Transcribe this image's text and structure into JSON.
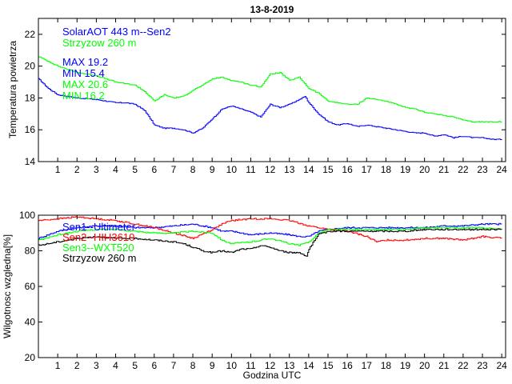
{
  "figure_title": "13-8-2019",
  "colors": {
    "blue": "#0000ff",
    "green": "#00ff00",
    "red": "#ff0000",
    "black": "#000000"
  },
  "chart_data": [
    {
      "type": "line",
      "title": "13-8-2019",
      "xlabel": "",
      "ylabel": "Temperatura powietrza",
      "xlim": [
        0,
        24.2
      ],
      "ylim": [
        14,
        23
      ],
      "xticks": [
        "1",
        "2",
        "3",
        "4",
        "5",
        "6",
        "7",
        "8",
        "9",
        "10",
        "11",
        "12",
        "13",
        "14",
        "15",
        "16",
        "17",
        "18",
        "19",
        "20",
        "21",
        "22",
        "23",
        "24"
      ],
      "yticks": [
        "14",
        "16",
        "18",
        "20",
        "22"
      ],
      "legend": [
        {
          "text": "SolarAOT 443 m--Sen2",
          "color": "#0000ff"
        },
        {
          "text": "Strzyzow 260 m",
          "color": "#00ff00"
        }
      ],
      "annotations": [
        {
          "text": "MAX 19.2",
          "color": "#0000ff"
        },
        {
          "text": "MIN 15.4",
          "color": "#0000ff"
        },
        {
          "text": "MAX 20.6",
          "color": "#00ff00"
        },
        {
          "text": "MIN 16.2",
          "color": "#00ff00"
        }
      ],
      "series": [
        {
          "name": "SolarAOT 443 m--Sen2",
          "color": "#0000ff",
          "x": [
            0,
            0.5,
            1,
            2,
            3,
            4,
            4.5,
            5,
            5.5,
            6,
            6.5,
            7,
            7.5,
            8,
            8.5,
            9,
            9.5,
            10,
            10.5,
            11,
            11.5,
            12,
            12.5,
            13,
            13.5,
            13.8,
            14,
            14.5,
            15,
            15.5,
            16,
            16.5,
            17,
            17.5,
            18,
            18.5,
            19,
            19.5,
            20,
            20.5,
            21,
            21.5,
            22,
            22.5,
            23,
            23.5,
            24
          ],
          "y": [
            19.2,
            18.6,
            18.2,
            18.0,
            17.9,
            17.7,
            17.7,
            17.6,
            17.2,
            16.3,
            16.1,
            16.1,
            16.0,
            15.8,
            16.1,
            16.7,
            17.3,
            17.5,
            17.3,
            17.1,
            16.8,
            17.6,
            17.4,
            17.6,
            17.9,
            18.1,
            17.7,
            17.0,
            16.5,
            16.3,
            16.4,
            16.2,
            16.3,
            16.2,
            16.1,
            16.0,
            15.9,
            15.8,
            15.8,
            15.6,
            15.7,
            15.5,
            15.6,
            15.5,
            15.5,
            15.4,
            15.4
          ]
        },
        {
          "name": "Strzyzow 260 m",
          "color": "#00ff00",
          "x": [
            0,
            0.5,
            1,
            1.5,
            2,
            2.5,
            3,
            3.5,
            4,
            4.5,
            5,
            5.5,
            6,
            6.5,
            7,
            7.5,
            8,
            8.5,
            9,
            9.5,
            10,
            10.5,
            11,
            11.5,
            12,
            12.5,
            13,
            13.5,
            14,
            14.5,
            15,
            15.5,
            16,
            16.5,
            17,
            17.5,
            18,
            18.5,
            19,
            19.5,
            20,
            20.5,
            21,
            21.5,
            22,
            22.5,
            23,
            23.5,
            24
          ],
          "y": [
            20.6,
            20.3,
            20.0,
            19.8,
            19.6,
            19.5,
            19.4,
            19.2,
            19.0,
            18.9,
            18.8,
            18.4,
            17.8,
            18.2,
            18.0,
            18.1,
            18.5,
            18.8,
            19.2,
            19.3,
            19.1,
            19.0,
            18.8,
            18.7,
            19.5,
            19.6,
            19.1,
            19.3,
            18.6,
            18.3,
            17.8,
            17.7,
            17.6,
            17.6,
            18.0,
            17.9,
            17.8,
            17.6,
            17.4,
            17.3,
            17.1,
            17.0,
            16.9,
            16.8,
            16.6,
            16.5,
            16.5,
            16.5,
            16.5
          ]
        }
      ]
    },
    {
      "type": "line",
      "title": "",
      "xlabel": "Godzina UTC",
      "ylabel": "Wilgotnosc wzgledna[%]",
      "xlim": [
        0,
        24.2
      ],
      "ylim": [
        20,
        100
      ],
      "xticks": [
        "1",
        "2",
        "3",
        "4",
        "5",
        "6",
        "7",
        "8",
        "9",
        "10",
        "11",
        "12",
        "13",
        "14",
        "15",
        "16",
        "17",
        "18",
        "19",
        "20",
        "21",
        "22",
        "23",
        "24"
      ],
      "yticks": [
        "20",
        "40",
        "60",
        "80",
        "100"
      ],
      "legend": [
        {
          "text": "Sen1--Ultimeter",
          "color": "#0000ff"
        },
        {
          "text": "Sen2--HIH3610",
          "color": "#ff0000"
        },
        {
          "text": "Sen3--WXT520",
          "color": "#00ff00"
        },
        {
          "text": "Strzyzow 260 m",
          "color": "#000000"
        }
      ],
      "series": [
        {
          "name": "Sen1--Ultimeter",
          "color": "#0000ff",
          "x": [
            0,
            1,
            2,
            3,
            4,
            5,
            6,
            7,
            8,
            9,
            9.5,
            10,
            11,
            12,
            13,
            13.5,
            14,
            14.5,
            15,
            16,
            17,
            18,
            19,
            20,
            21,
            22,
            23,
            24
          ],
          "y": [
            87,
            91,
            93,
            94,
            94,
            93,
            93,
            94,
            95,
            93,
            91,
            91,
            89,
            90,
            89,
            88,
            88,
            91,
            92,
            93,
            93,
            93,
            93,
            93,
            94,
            94,
            95,
            95
          ]
        },
        {
          "name": "Sen2--HIH3610",
          "color": "#ff0000",
          "x": [
            0,
            1,
            2,
            3,
            4,
            5,
            6,
            7,
            8,
            9,
            9.5,
            10,
            11,
            12,
            13,
            14,
            15,
            16,
            17,
            17.5,
            18,
            19,
            20,
            21,
            22,
            23,
            24
          ],
          "y": [
            97,
            98,
            99,
            98,
            97,
            95,
            93,
            90,
            87,
            92,
            95,
            97,
            98,
            98,
            97,
            94,
            92,
            91,
            88,
            85,
            86,
            86,
            87,
            87,
            86,
            88,
            87
          ]
        },
        {
          "name": "Sen3--WXT520",
          "color": "#00ff00",
          "x": [
            0,
            1,
            2,
            3,
            4,
            5,
            6,
            7,
            8,
            9,
            9.5,
            10,
            11,
            12,
            13,
            13.5,
            14,
            14.5,
            15,
            16,
            17,
            18,
            19,
            20,
            21,
            22,
            23,
            24
          ],
          "y": [
            86,
            89,
            91,
            92,
            92,
            91,
            90,
            90,
            91,
            90,
            86,
            84,
            85,
            87,
            84,
            83,
            85,
            90,
            92,
            92,
            92,
            92,
            92,
            93,
            93,
            93,
            93,
            92
          ]
        },
        {
          "name": "Strzyzow 260 m",
          "color": "#000000",
          "x": [
            0,
            1,
            2,
            3,
            4,
            5,
            6,
            7,
            7.5,
            8,
            8.5,
            9,
            9.5,
            10,
            10.5,
            11,
            11.5,
            12,
            12.5,
            13,
            13.5,
            13.9,
            14,
            14.5,
            15,
            16,
            17,
            18,
            19,
            20,
            21,
            22,
            23,
            24
          ],
          "y": [
            83,
            85,
            87,
            88,
            87,
            87,
            86,
            85,
            84,
            82,
            80,
            79,
            80,
            79,
            81,
            81,
            83,
            82,
            80,
            79,
            79,
            77,
            81,
            89,
            91,
            91,
            91,
            91,
            91,
            92,
            92,
            92,
            92,
            92
          ]
        }
      ]
    }
  ]
}
